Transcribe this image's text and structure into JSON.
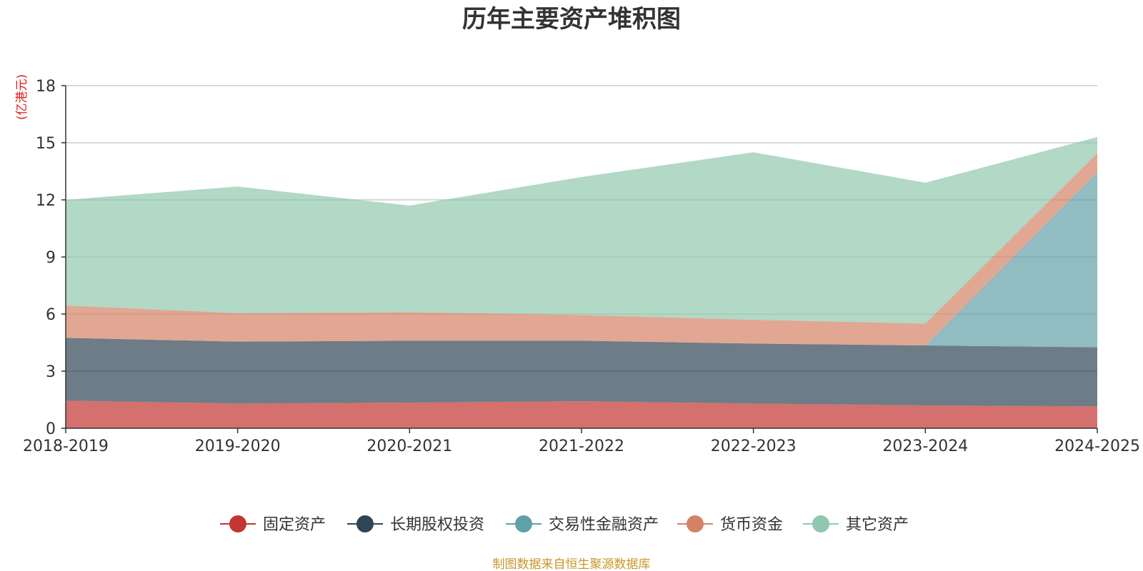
{
  "chart_data": {
    "type": "area",
    "stacked": true,
    "title": "历年主要资产堆积图",
    "unit_label": "(亿港元)",
    "categories": [
      "2018-2019",
      "2019-2020",
      "2020-2021",
      "2021-2022",
      "2022-2023",
      "2023-2024",
      "2024-2025"
    ],
    "ylim": [
      0,
      18
    ],
    "yticks": [
      0,
      3,
      6,
      9,
      12,
      15,
      18
    ],
    "grid": true,
    "legend_position": "bottom",
    "series": [
      {
        "name": "固定资产",
        "color": "#c23531",
        "values": [
          1.45,
          1.3,
          1.35,
          1.42,
          1.3,
          1.2,
          1.15
        ]
      },
      {
        "name": "长期股权投资",
        "color": "#2f4554",
        "values": [
          3.3,
          3.25,
          3.25,
          3.18,
          3.15,
          3.15,
          3.1
        ]
      },
      {
        "name": "交易性金融资产",
        "color": "#61a0a8",
        "values": [
          0,
          0,
          0,
          0,
          0,
          0,
          9.2
        ]
      },
      {
        "name": "货币资金",
        "color": "#d48265",
        "values": [
          1.7,
          1.5,
          1.5,
          1.35,
          1.25,
          1.15,
          1.0
        ]
      },
      {
        "name": "其它资产",
        "color": "#91c7ae",
        "values": [
          5.55,
          6.65,
          5.6,
          7.25,
          8.8,
          7.4,
          0.85
        ]
      }
    ]
  },
  "source_note": "制图数据来自恒生聚源数据库"
}
